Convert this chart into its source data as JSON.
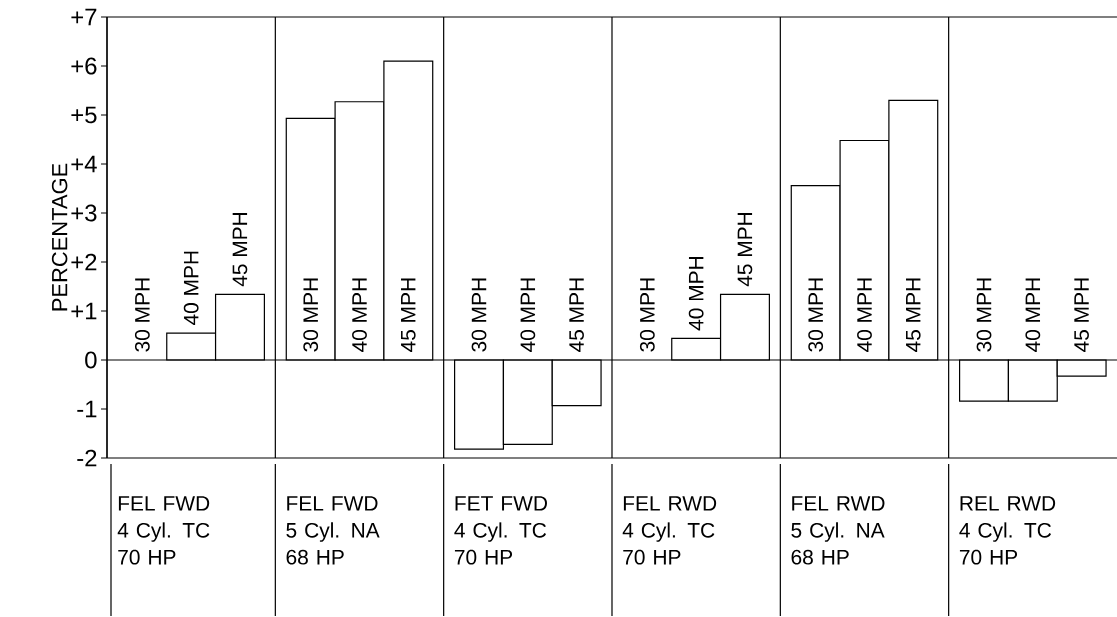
{
  "chart_data": {
    "type": "bar",
    "ylabel": "PERCENTAGE",
    "categories": [
      "FEL FWD\n4 Cyl. TC\n70 HP",
      "FEL FWD\n5 Cyl. NA\n68 HP",
      "FET FWD\n4 Cyl. TC\n70 HP",
      "FEL RWD\n4 Cyl. TC\n70 HP",
      "FEL RWD\n5 Cyl. NA\n68 HP",
      "REL RWD\n4 Cyl. TC\n70 HP"
    ],
    "series": [
      {
        "name": "30 MPH",
        "color": "#ffffff",
        "values": [
          null,
          4.93,
          -1.82,
          null,
          3.56,
          -0.84
        ]
      },
      {
        "name": "40 MPH",
        "color": "#ffffff",
        "values": [
          0.55,
          5.27,
          -1.72,
          0.44,
          4.48,
          -0.84
        ]
      },
      {
        "name": "45 MPH",
        "color": "#ffffff",
        "values": [
          1.34,
          6.1,
          -0.93,
          1.34,
          5.3,
          -0.33
        ]
      }
    ],
    "ylim": [
      -2,
      7
    ],
    "yticks": [
      -2,
      -1,
      0,
      {
        "value": 1,
        "label": "+1"
      },
      {
        "value": 2,
        "label": "+2"
      },
      {
        "value": 3,
        "label": "+3"
      },
      {
        "value": 4,
        "label": "+4"
      },
      {
        "value": 5,
        "label": "+5"
      },
      {
        "value": 6,
        "label": "+6"
      },
      {
        "value": 7,
        "label": "+7"
      }
    ]
  }
}
